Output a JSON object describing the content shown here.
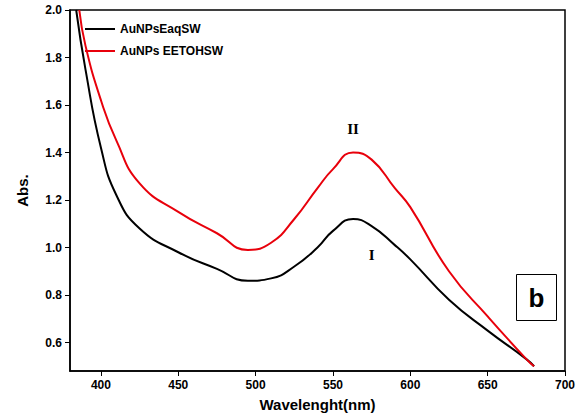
{
  "chart_data": {
    "type": "line",
    "x_label": "Wavelenght(nm)",
    "y_label": "Abs.",
    "xlim": [
      380,
      700
    ],
    "xticks": [
      400,
      450,
      500,
      550,
      600,
      650,
      700
    ],
    "ylim": [
      0.48,
      2.0
    ],
    "yticks": [
      {
        "value": 0.6,
        "label": "0.6"
      },
      {
        "value": 0.8,
        "label": "0.8"
      },
      {
        "value": 1.0,
        "label": "1.0"
      },
      {
        "value": 1.2,
        "label": "1.2"
      },
      {
        "value": 1.4,
        "label": "1.4"
      },
      {
        "value": 1.6,
        "label": "1.6"
      },
      {
        "value": 1.8,
        "label": "1.8"
      },
      {
        "value": 2.0,
        "label": "2.0"
      }
    ],
    "grid": false,
    "legend": "upper left",
    "panel_label": "b",
    "series": [
      {
        "name": "AuNPsEaqSW",
        "color": "#000000",
        "x": [
          384,
          390,
          400,
          410,
          425,
          450,
          475,
          495,
          510,
          525,
          540,
          550,
          563,
          575,
          590,
          600,
          625,
          650,
          675,
          680
        ],
        "values": [
          2.0,
          1.75,
          1.42,
          1.22,
          1.08,
          0.98,
          0.91,
          0.86,
          0.87,
          0.92,
          1.0,
          1.07,
          1.12,
          1.09,
          1.01,
          0.95,
          0.78,
          0.65,
          0.53,
          0.5
        ]
      },
      {
        "name": "AuNPs EETOHSW",
        "color": "#e8000b",
        "x": [
          386,
          390,
          400,
          410,
          425,
          450,
          475,
          495,
          510,
          525,
          540,
          550,
          563,
          575,
          590,
          600,
          625,
          650,
          675,
          680
        ],
        "values": [
          2.0,
          1.85,
          1.62,
          1.45,
          1.27,
          1.15,
          1.06,
          0.99,
          1.02,
          1.12,
          1.25,
          1.33,
          1.4,
          1.37,
          1.25,
          1.17,
          0.9,
          0.71,
          0.53,
          0.5
        ]
      }
    ],
    "annotations": [
      {
        "text": "I",
        "x": 575,
        "y": 0.97
      },
      {
        "text": "II",
        "x": 563,
        "y": 1.5
      }
    ]
  }
}
